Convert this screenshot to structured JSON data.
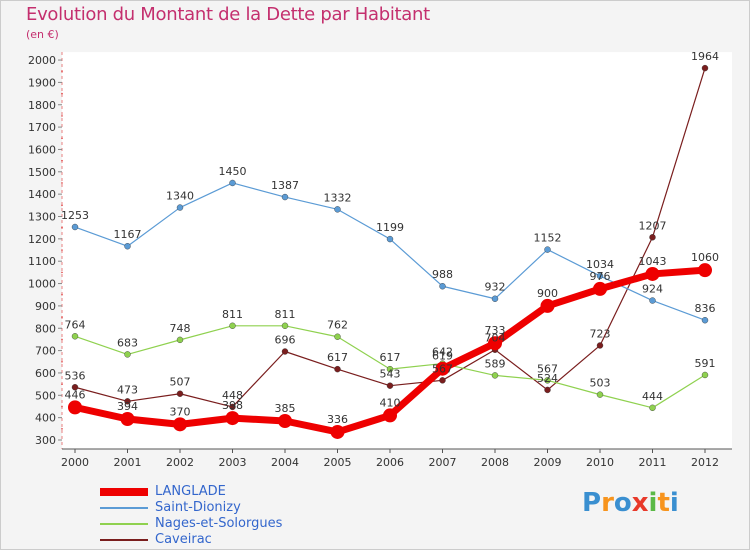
{
  "title": "Evolution du Montant de la Dette par Habitant",
  "subtitle": "(en €)",
  "logo": {
    "text": "Proxiti",
    "letters": [
      "P",
      "r",
      "o",
      "x",
      "i",
      "t",
      "i"
    ],
    "colors": [
      "#3a8fd0",
      "#f7941d",
      "#3a8fd0",
      "#e8392a",
      "#5ab946",
      "#f7941d",
      "#3a8fd0"
    ]
  },
  "chart_data": {
    "type": "line",
    "title": "Evolution du Montant de la Dette par Habitant",
    "ylabel": "(en €)",
    "xlabel": "",
    "x": [
      "2000",
      "2001",
      "2002",
      "2003",
      "2004",
      "2005",
      "2006",
      "2007",
      "2008",
      "2009",
      "2010",
      "2011",
      "2012"
    ],
    "ylim": [
      300,
      2000
    ],
    "yticks": [
      300,
      400,
      500,
      600,
      700,
      800,
      900,
      1000,
      1100,
      1200,
      1300,
      1400,
      1500,
      1600,
      1700,
      1800,
      1900,
      2000
    ],
    "grid": false,
    "legend_position": "bottom-left",
    "series": [
      {
        "name": "LANGLADE",
        "color": "#ee0000",
        "values": [
          446,
          394,
          370,
          398,
          385,
          336,
          410,
          619,
          733,
          900,
          976,
          1043,
          1060
        ]
      },
      {
        "name": "Saint-Dionizy",
        "color": "#5b9bd5",
        "values": [
          1253,
          1167,
          1340,
          1450,
          1387,
          1332,
          1199,
          988,
          932,
          1152,
          1034,
          924,
          836
        ]
      },
      {
        "name": "Nages-et-Solorgues",
        "color": "#8fd14f",
        "values": [
          764,
          683,
          748,
          811,
          811,
          762,
          617,
          642,
          589,
          567,
          503,
          444,
          591
        ]
      },
      {
        "name": "Caveirac",
        "color": "#7a1e1e",
        "values": [
          536,
          473,
          507,
          448,
          696,
          617,
          543,
          567,
          704,
          524,
          723,
          1207,
          1964
        ]
      }
    ]
  }
}
